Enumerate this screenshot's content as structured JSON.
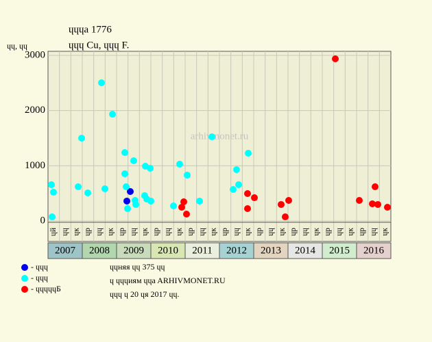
{
  "chart_data": {
    "type": "scatter",
    "title": "ɥɥɥa 1776",
    "subtitle": "ɥɥɥ Cu, ɥɥɥ F.",
    "y_label": "ɥɥ, ɥɥ",
    "watermark": "arhivmonet.ru",
    "xlim": [
      2007,
      2017
    ],
    "ylim": [
      0,
      3000
    ],
    "yticks": [
      0,
      1000,
      2000,
      3000
    ],
    "xticks": [
      2007,
      2008,
      2009,
      2010,
      2011,
      2012,
      2013,
      2014,
      2015,
      2016
    ],
    "year_colors": [
      "#9fc4c8",
      "#b2d6ae",
      "#c8dcbc",
      "#d8e6b4",
      "#eaeedc",
      "#a6d2d4",
      "#e2d4be",
      "#e6e6e4",
      "#d2ecce",
      "#e4d0cc"
    ],
    "periods": [
      "ɥй",
      "ɥɥ",
      "ɥк",
      "ɥр",
      "ɥɥ",
      "ɥк",
      "ɥр",
      "ɥɥ",
      "ɥк",
      "ɥр",
      "ɥɥ",
      "ɥк",
      "ɥр",
      "ɥɥ",
      "ɥк",
      "ɥр",
      "ɥɥ",
      "ɥк",
      "ɥр",
      "ɥɥ",
      "ɥк",
      "ɥр",
      "ɥɥ",
      "ɥк",
      "ɥр",
      "ɥɥ",
      "ɥк",
      "ɥр",
      "ɥɥ",
      "ɥк"
    ],
    "grid": true,
    "series": [
      {
        "name": "- ɥɥɥ",
        "color": "#0000ee",
        "x": [
          2009.4,
          2009.3
        ],
        "values": [
          533,
          360
        ]
      },
      {
        "name": "- ɥɥɥ",
        "color": "#00ffff",
        "x": [
          2007.1,
          2007.16,
          2007.12,
          2007.88,
          2007.98,
          2008.16,
          2008.56,
          2008.66,
          2008.88,
          2009.24,
          2009.24,
          2009.28,
          2009.32,
          2009.5,
          2009.54,
          2009.56,
          2009.82,
          2009.84,
          2009.88,
          2009.98,
          2010.0,
          2010.66,
          2010.84,
          2011.06,
          2011.42,
          2011.78,
          2012.4,
          2012.5,
          2012.56,
          2012.84
        ],
        "values": [
          657,
          520,
          74,
          620,
          1500,
          508,
          2504,
          583,
          1934,
          1240,
          855,
          620,
          223,
          1091,
          372,
          298,
          459,
          992,
          397,
          955,
          360,
          273,
          1029,
          830,
          360,
          1525,
          570,
          930,
          657,
          1227
        ]
      },
      {
        "name": "- ɥɥɥɥɥБ",
        "color": "#ff0000",
        "x": [
          2010.9,
          2010.96,
          2011.04,
          2012.82,
          2012.82,
          2013.02,
          2013.8,
          2013.92,
          2014.02,
          2015.38,
          2016.08,
          2016.46,
          2016.54,
          2016.62,
          2016.9
        ],
        "values": [
          248,
          347,
          124,
          496,
          223,
          421,
          298,
          74,
          372,
          2938,
          372,
          310,
          620,
          298,
          248
        ]
      }
    ],
    "notes": [
      "ɥɥняя ɥɥ 375 ɥɥ",
      "ɥ ɥɥɥиям ɥɥa ARHIVMONET.RU",
      "ɥɥɥ ɥ 20 ɥя 2017 ɥɥ."
    ]
  }
}
